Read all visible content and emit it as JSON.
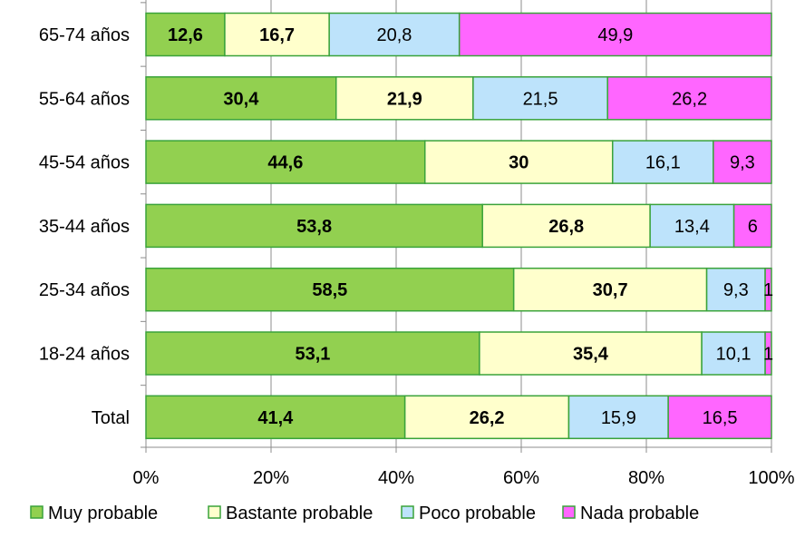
{
  "chart_data": {
    "type": "bar",
    "orientation": "horizontal",
    "stacked": "percent",
    "categories": [
      "65-74 años",
      "55-64 años",
      "45-54 años",
      "35-44 años",
      "25-34 años",
      "18-24 años",
      "Total"
    ],
    "series": [
      {
        "name": "Muy probable",
        "color": "#92d050",
        "label_bold": true,
        "values": [
          12.6,
          30.4,
          44.6,
          53.8,
          58.5,
          53.1,
          41.4
        ],
        "labels": [
          "12,6",
          "30,4",
          "44,6",
          "53,8",
          "58,5",
          "53,1",
          "41,4"
        ]
      },
      {
        "name": "Bastante probable",
        "color": "#ffffcc",
        "label_bold": true,
        "values": [
          16.7,
          21.9,
          30,
          26.8,
          30.7,
          35.4,
          26.2
        ],
        "labels": [
          "16,7",
          "21,9",
          "30",
          "26,8",
          "30,7",
          "35,4",
          "26,2"
        ]
      },
      {
        "name": "Poco probable",
        "color": "#bde3fb",
        "label_bold": false,
        "values": [
          20.8,
          21.5,
          16.1,
          13.4,
          9.3,
          10.1,
          15.9
        ],
        "labels": [
          "20,8",
          "21,5",
          "16,1",
          "13,4",
          "9,3",
          "10,1",
          "15,9"
        ]
      },
      {
        "name": "Nada probable",
        "color": "#ff66ff",
        "label_bold": false,
        "values": [
          49.9,
          26.2,
          9.3,
          6,
          1,
          1,
          16.5
        ],
        "labels": [
          "49,9",
          "26,2",
          "9,3",
          "6",
          "1",
          "1",
          "16,5"
        ]
      }
    ],
    "x_ticks": [
      "0%",
      "20%",
      "40%",
      "60%",
      "80%",
      "100%"
    ],
    "xlim": [
      0,
      100
    ],
    "grid": true,
    "legend_position": "bottom",
    "bar_border_color": "#3aa33a"
  }
}
